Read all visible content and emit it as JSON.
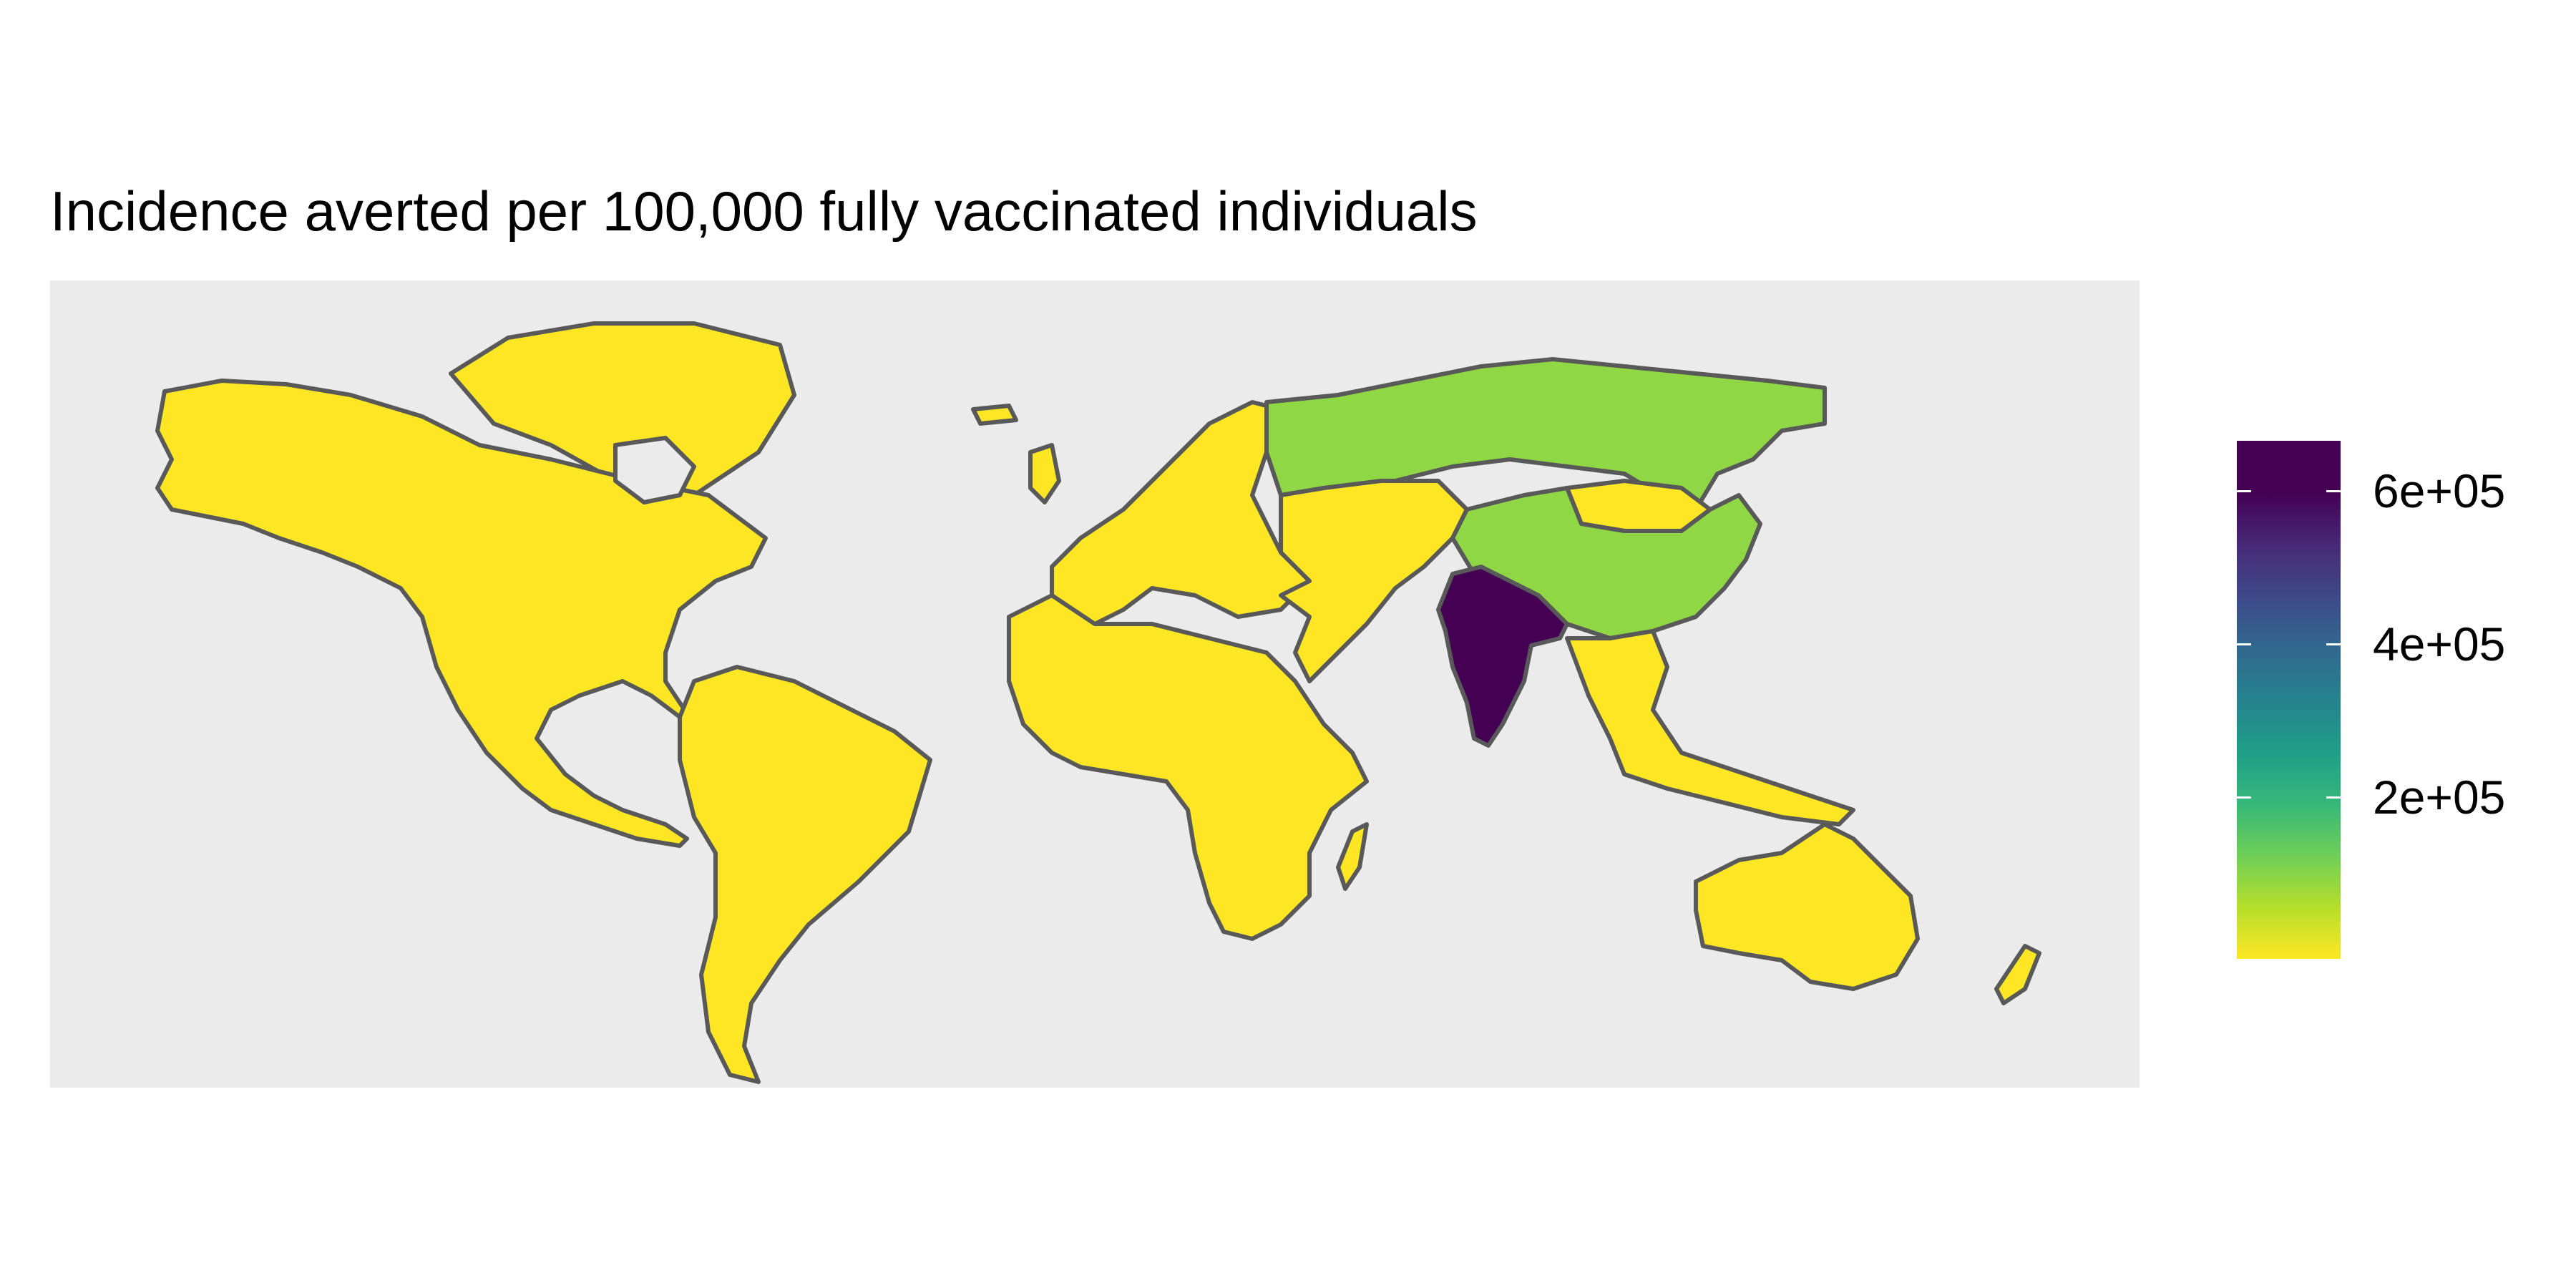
{
  "title": "Incidence averted per 100,000 fully vaccinated individuals",
  "legend": {
    "labels": [
      "6e+05",
      "4e+05",
      "2e+05"
    ],
    "values": [
      600000,
      400000,
      200000
    ],
    "range": [
      5000,
      680000
    ],
    "palette": "viridis (reversed)",
    "position": "right"
  },
  "colors": {
    "panel_background": "#ebebeb",
    "border": "#595959",
    "low": "#fde725",
    "mid": "#8fd744",
    "high": "#440154"
  },
  "map_data": {
    "type": "choropleth",
    "regions": [
      {
        "name": "North America",
        "level": "low"
      },
      {
        "name": "South America",
        "level": "low"
      },
      {
        "name": "Europe",
        "level": "low"
      },
      {
        "name": "Africa",
        "level": "low"
      },
      {
        "name": "Middle East and Central Asia",
        "level": "low"
      },
      {
        "name": "Russia",
        "level": "mid"
      },
      {
        "name": "China",
        "level": "mid"
      },
      {
        "name": "Mongolia",
        "level": "low"
      },
      {
        "name": "India",
        "level": "high"
      },
      {
        "name": "Southeast Asia",
        "level": "low"
      },
      {
        "name": "Australia",
        "level": "low"
      },
      {
        "name": "Greenland",
        "level": "low"
      }
    ]
  }
}
